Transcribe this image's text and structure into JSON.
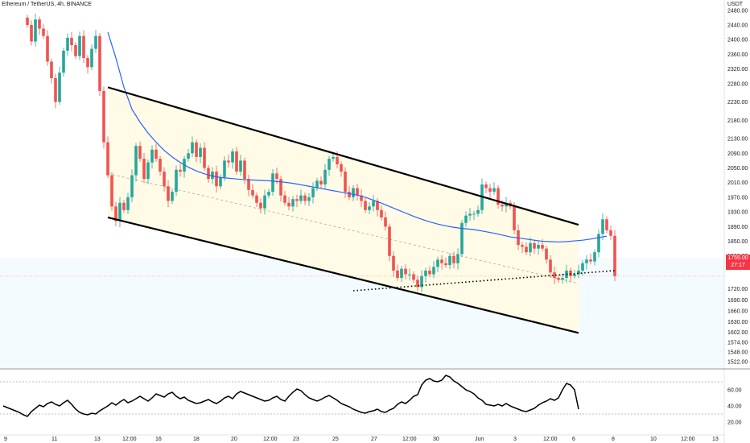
{
  "header": {
    "symbol": "Ethereum / TetherUS",
    "interval": "4h",
    "exchange": "BINANCE",
    "currency": "USDT"
  },
  "last_price": {
    "value": "1755.00",
    "countdown": "27:17",
    "color": "#f23645"
  },
  "colors": {
    "up": "#26a69a",
    "down": "#ef5350",
    "ma": "#2962ff",
    "channel_fill": "#fffbe6",
    "lower_fill": "#f4fbff",
    "rsi": "#000000"
  },
  "chart_data": [
    {
      "type": "candlestick",
      "x_ticks": [
        "9",
        "11",
        "13",
        "12:00",
        "16",
        "18",
        "20",
        "12:00",
        "23",
        "25",
        "27",
        "12:00",
        "30",
        "Jun",
        "3",
        "12:00",
        "6",
        "8",
        "10",
        "12:00",
        "13"
      ],
      "y_ticks": [
        "2480.00",
        "2440.00",
        "2400.00",
        "2360.00",
        "2320.00",
        "2280.00",
        "2230.00",
        "2180.00",
        "2130.00",
        "2090.00",
        "2050.00",
        "2010.00",
        "1970.00",
        "1930.00",
        "1890.00",
        "1850.00",
        "1810.00",
        "1780.00",
        "1720.00",
        "1690.00",
        "1660.00",
        "1630.00",
        "1602.00",
        "1574.00",
        "1548.00",
        "1522.00"
      ],
      "ylim": [
        1522,
        2480
      ],
      "close": [
        2440,
        2395,
        2455,
        2430,
        2410,
        2340,
        2295,
        2230,
        2310,
        2370,
        2405,
        2385,
        2355,
        2410,
        2350,
        2325,
        2375,
        2410,
        2260,
        2120,
        2030,
        1945,
        1905,
        1955,
        1935,
        1970,
        2030,
        2110,
        2075,
        2020,
        2065,
        2100,
        2075,
        2040,
        2000,
        1960,
        1985,
        2045,
        2040,
        2075,
        2090,
        2120,
        2080,
        2105,
        2050,
        2020,
        2040,
        2000,
        2025,
        2070,
        2065,
        2095,
        2040,
        2070,
        2020,
        1990,
        1975,
        1955,
        1940,
        1975,
        1985,
        2035,
        2020,
        1975,
        1955,
        1945,
        1965,
        1960,
        1975,
        1960,
        1970,
        1995,
        2015,
        2005,
        2045,
        2075,
        2080,
        2060,
        2040,
        1985,
        1970,
        1995,
        1975,
        1960,
        1935,
        1945,
        1960,
        1935,
        1915,
        1890,
        1810,
        1770,
        1750,
        1775,
        1760,
        1760,
        1745,
        1725,
        1755,
        1770,
        1760,
        1780,
        1800,
        1790,
        1785,
        1810,
        1790,
        1815,
        1900,
        1920,
        1925,
        1925,
        1935,
        2005,
        1995,
        1985,
        1995,
        1950,
        1945,
        1955,
        1945,
        1880,
        1840,
        1835,
        1820,
        1845,
        1830,
        1840,
        1830,
        1800,
        1765,
        1750,
        1745,
        1750,
        1770,
        1755,
        1760,
        1770,
        1790,
        1800,
        1795,
        1820,
        1870,
        1910,
        1880,
        1865,
        1755
      ],
      "ma_start_index": 20,
      "ma_values": [
        2420,
        2350,
        2270,
        2210,
        2175,
        2145,
        2120,
        2098,
        2080,
        2065,
        2052,
        2042,
        2034,
        2028,
        2024,
        2022,
        2020,
        2018,
        2017,
        2016,
        2015,
        2013,
        2011,
        2008,
        2004,
        2000,
        1996,
        1992,
        1988,
        1984,
        1980,
        1976,
        1970,
        1962,
        1954,
        1945,
        1936,
        1927,
        1918,
        1910,
        1903,
        1897,
        1892,
        1888,
        1885,
        1883,
        1880,
        1876,
        1872,
        1867,
        1862,
        1859,
        1856,
        1853,
        1850,
        1849,
        1848,
        1849,
        1851,
        1853,
        1856,
        1860,
        1864
      ],
      "channel_upper": [
        [
          2270,
          20
        ],
        [
          1895,
          137
        ]
      ],
      "channel_lower": [
        [
          1915,
          20
        ],
        [
          1600,
          137
        ]
      ],
      "channel_mid_dashed": [
        [
          2035,
          20
        ],
        [
          1735,
          137
        ]
      ],
      "support_dotted": [
        [
          1715,
          81
        ],
        [
          1770,
          146
        ]
      ]
    },
    {
      "type": "line",
      "name": "RSI",
      "y_ticks": [
        "60.00",
        "40.00",
        "20.00"
      ],
      "ylim": [
        14,
        84
      ],
      "bands": [
        70,
        30
      ],
      "values": [
        40,
        38,
        36,
        34,
        32,
        29,
        27,
        33,
        37,
        41,
        39,
        43,
        45,
        42,
        40,
        44,
        47,
        42,
        36,
        32,
        30,
        29,
        31,
        30,
        34,
        37,
        40,
        44,
        41,
        45,
        48,
        44,
        46,
        49,
        52,
        49,
        46,
        50,
        55,
        53,
        51,
        55,
        57,
        52,
        49,
        51,
        47,
        45,
        43,
        44,
        46,
        48,
        45,
        43,
        46,
        50,
        52,
        49,
        55,
        58,
        56,
        54,
        52,
        50,
        48,
        46,
        47,
        50,
        52,
        48,
        46,
        52,
        57,
        61,
        59,
        54,
        50,
        48,
        46,
        48,
        51,
        53,
        50,
        47,
        43,
        41,
        39,
        36,
        34,
        32,
        31,
        33,
        34,
        36,
        33,
        32,
        35,
        37,
        42,
        45,
        43,
        47,
        52,
        54,
        66,
        72,
        74,
        71,
        70,
        72,
        78,
        76,
        71,
        68,
        64,
        60,
        58,
        55,
        50,
        47,
        42,
        41,
        40,
        42,
        40,
        43,
        40,
        38,
        36,
        34,
        33,
        35,
        37,
        41,
        44,
        46,
        49,
        47,
        50,
        60,
        68,
        66,
        60,
        36
      ]
    }
  ]
}
